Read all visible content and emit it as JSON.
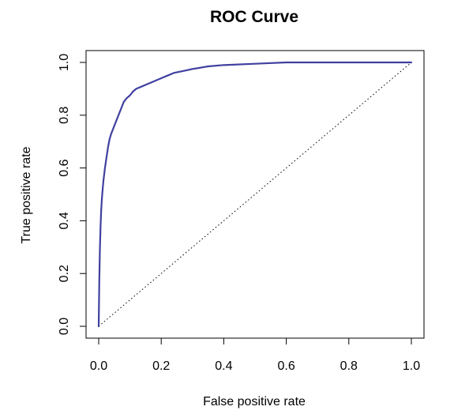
{
  "chart_data": {
    "type": "line",
    "title": "ROC Curve",
    "xlabel": "False positive rate",
    "ylabel": "True positive rate",
    "xlim": [
      0,
      1
    ],
    "ylim": [
      0,
      1
    ],
    "xticks": [
      0.0,
      0.2,
      0.4,
      0.6,
      0.8,
      1.0
    ],
    "yticks": [
      0.0,
      0.2,
      0.4,
      0.6,
      0.8,
      1.0
    ],
    "xtick_labels": [
      "0.0",
      "0.2",
      "0.4",
      "0.6",
      "0.8",
      "1.0"
    ],
    "ytick_labels": [
      "0.0",
      "0.2",
      "0.4",
      "0.6",
      "0.8",
      "1.0"
    ],
    "grid": false,
    "colors": {
      "roc": "#4040a0",
      "reference": "#000000"
    },
    "series": [
      {
        "x": [
          0,
          0.002,
          0.004,
          0.006,
          0.008,
          0.01,
          0.012,
          0.015,
          0.02,
          0.025,
          0.03,
          0.035,
          0.04,
          0.05,
          0.06,
          0.07,
          0.08,
          0.09,
          0.1,
          0.11,
          0.12,
          0.13,
          0.14,
          0.15,
          0.16,
          0.18,
          0.2,
          0.22,
          0.24,
          0.26,
          0.28,
          0.3,
          0.35,
          0.4,
          0.5,
          0.6,
          0.7,
          0.8,
          0.9,
          1.0
        ],
        "y": [
          0,
          0.18,
          0.3,
          0.38,
          0.44,
          0.48,
          0.51,
          0.55,
          0.6,
          0.64,
          0.68,
          0.71,
          0.73,
          0.76,
          0.79,
          0.82,
          0.85,
          0.865,
          0.875,
          0.89,
          0.9,
          0.905,
          0.91,
          0.915,
          0.92,
          0.93,
          0.94,
          0.95,
          0.96,
          0.965,
          0.97,
          0.975,
          0.985,
          0.99,
          0.995,
          1.0,
          1.0,
          1.0,
          1.0,
          1.0
        ]
      }
    ],
    "reference_line": {
      "x": [
        0,
        1
      ],
      "y": [
        0,
        1
      ]
    }
  }
}
